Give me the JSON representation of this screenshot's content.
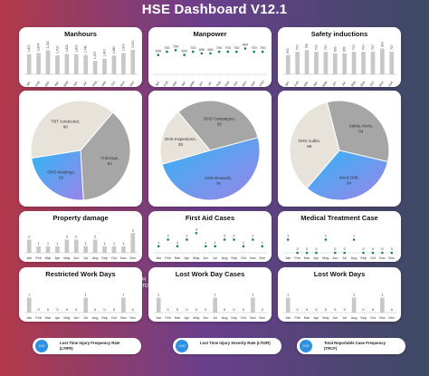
{
  "dashboard": {
    "title": "HSE Dashboard V12.1"
  },
  "months": [
    "Jan",
    "Feb",
    "Mar",
    "Apr",
    "May",
    "Jun",
    "Jul",
    "Aug",
    "Sep",
    "Oct",
    "Nov",
    "Dec"
  ],
  "colors": {
    "bar": "#c8c8c8",
    "dot": "#1b7a6a",
    "axis": "#7aa0c8",
    "pie_grey": "#a6a6a6",
    "pie_light": "#e7e3da",
    "pie_blue1": "#2fb6f5",
    "pie_blue2": "#9c84e8"
  },
  "kpis": [
    {
      "dot_text": "0.00",
      "label": "Lost Time Injury Frequency Rate (LTIFR)"
    },
    {
      "dot_text": "0.00",
      "label": "Lost Time Injury Severity Rate (LTISR)"
    },
    {
      "dot_text": "0.00",
      "label": "Total Reportable Case Frequency (TRCF)"
    }
  ],
  "edge_text": [
    "FI",
    "TD"
  ],
  "chart_data": [
    {
      "id": "manhours",
      "type": "bar",
      "title": "Manhours",
      "categories": [
        "Jan",
        "Feb",
        "Mar",
        "Apr",
        "May",
        "Jun",
        "Jul",
        "Aug",
        "Sep",
        "Oct",
        "Nov",
        "Dec"
      ],
      "values": [
        1800,
        1904,
        2150,
        1700,
        1820,
        1800,
        1740,
        1200,
        1400,
        1680,
        1900,
        2200
      ],
      "labels": [
        "1,800",
        "1,904",
        "2,150",
        "1,700",
        "1,820",
        "1,800",
        "1,740",
        "1,200",
        "1,400",
        "1,680",
        "1,900",
        "2,200"
      ],
      "ylim": [
        0,
        2600
      ]
    },
    {
      "id": "manpower",
      "type": "line",
      "title": "Manpower",
      "categories": [
        "Jan",
        "Feb",
        "Mar",
        "Apr",
        "May",
        "Jun",
        "Jul",
        "Aug",
        "Sep",
        "Oct",
        "Nov",
        "Dec",
        "YTD"
      ],
      "values": [
        600,
        700,
        750,
        600,
        700,
        650,
        650,
        700,
        700,
        700,
        800,
        700,
        700
      ],
      "labels": [
        "600",
        "700",
        "750",
        "600",
        "700",
        "650",
        "650",
        "700",
        "700",
        "700",
        "800",
        "700",
        "700"
      ],
      "ylim": [
        0,
        900
      ]
    },
    {
      "id": "safety_inductions",
      "type": "bar",
      "title": "Safety inductions",
      "categories": [
        "Jan",
        "Feb",
        "Mar",
        "Apr",
        "May",
        "Jun",
        "Jul",
        "Aug",
        "Sep",
        "Oct",
        "Nov",
        "Dec"
      ],
      "values": [
        600,
        700,
        750,
        700,
        700,
        650,
        650,
        700,
        700,
        700,
        800,
        700
      ],
      "labels": [
        "600",
        "700",
        "750",
        "700",
        "700",
        "650",
        "650",
        "700",
        "700",
        "700",
        "800",
        "700"
      ],
      "ylim": [
        0,
        900
      ]
    },
    {
      "id": "pie1",
      "type": "pie",
      "slices": [
        {
          "label": "TBT conducted, 86",
          "value": 86
        },
        {
          "label": "Trainings, 84",
          "value": 84
        },
        {
          "label": "OHS Meetings, 52",
          "value": 52
        }
      ]
    },
    {
      "id": "pie2",
      "type": "pie",
      "slices": [
        {
          "label": "OHS Campaigns, 50",
          "value": 50
        },
        {
          "label": "OHS Rewards, 78",
          "value": 78
        },
        {
          "label": "OHS Inspections, 29",
          "value": 29
        }
      ]
    },
    {
      "id": "pie3",
      "type": "pie",
      "slices": [
        {
          "label": "Safety Alerts, 64",
          "value": 64
        },
        {
          "label": "Mock Drill, 64",
          "value": 64
        },
        {
          "label": "OHS Audits, 68",
          "value": 68
        }
      ]
    },
    {
      "id": "property_damage",
      "type": "bar",
      "title": "Property damage",
      "categories": [
        "Jan",
        "Feb",
        "Mar",
        "Apr",
        "May",
        "Jun",
        "Jul",
        "Aug",
        "Sep",
        "Oct",
        "Nov",
        "Dec"
      ],
      "values": [
        2,
        1,
        1,
        1,
        2,
        2,
        1,
        2,
        1,
        1,
        1,
        3
      ],
      "labels": [
        "2",
        "1",
        "1",
        "1",
        "2",
        "2",
        "1",
        "2",
        "1",
        "1",
        "1",
        "3"
      ],
      "ylim": [
        0,
        4
      ]
    },
    {
      "id": "first_aid",
      "type": "line",
      "title": "First Aid Cases",
      "categories": [
        "Jan",
        "Feb",
        "Mar",
        "Apr",
        "May",
        "Jun",
        "Jul",
        "Aug",
        "Sep",
        "Oct",
        "Nov",
        "Dec"
      ],
      "values": [
        1,
        2,
        1,
        2,
        3,
        1,
        1,
        2,
        2,
        1,
        2,
        1
      ],
      "labels": [
        "1",
        "2",
        "1",
        "2",
        "3",
        "1",
        "1",
        "2",
        "2",
        "1",
        "2",
        "1"
      ],
      "ylim": [
        0,
        4
      ]
    },
    {
      "id": "medical_treatment",
      "type": "line",
      "title": "Medical Treatment Case",
      "categories": [
        "Jan",
        "Feb",
        "Mar",
        "Apr",
        "May",
        "Jun",
        "Jul",
        "Aug",
        "Sep",
        "Oct",
        "Nov",
        "Dec"
      ],
      "values": [
        1,
        0,
        0,
        0,
        1,
        0,
        0,
        1,
        0,
        0,
        0,
        0
      ],
      "labels": [
        "1",
        "0",
        "0",
        "0",
        "1",
        "0",
        "0",
        "1",
        "0",
        "0",
        "0",
        "0"
      ],
      "ylim": [
        0,
        2
      ]
    },
    {
      "id": "restricted_work_days",
      "type": "bar",
      "title": "Restricted Work Days",
      "categories": [
        "Jan",
        "Feb",
        "Mar",
        "Apr",
        "May",
        "Jun",
        "Jul",
        "Aug",
        "Sep",
        "Oct",
        "Nov",
        "Dec"
      ],
      "values": [
        1,
        0,
        0,
        0,
        0,
        0,
        1,
        0,
        0,
        0,
        1,
        0
      ],
      "labels": [
        "1",
        "0",
        "0",
        "0",
        "0",
        "0",
        "1",
        "0",
        "0",
        "0",
        "1",
        "0"
      ],
      "ylim": [
        0,
        2
      ]
    },
    {
      "id": "lost_work_day_cases",
      "type": "bar",
      "title": "Lost Work Day Cases",
      "categories": [
        "Jan",
        "Feb",
        "Mar",
        "Apr",
        "May",
        "Jun",
        "Jul",
        "Aug",
        "Sep",
        "Oct",
        "Nov",
        "Dec"
      ],
      "values": [
        1,
        0,
        0,
        0,
        0,
        0,
        1,
        0,
        0,
        0,
        1,
        0
      ],
      "labels": [
        "1",
        "0",
        "0",
        "0",
        "0",
        "0",
        "1",
        "0",
        "0",
        "0",
        "1",
        "0"
      ],
      "ylim": [
        0,
        2
      ]
    },
    {
      "id": "lost_work_days",
      "type": "bar",
      "title": "Lost Work Days",
      "categories": [
        "Jan",
        "Feb",
        "Mar",
        "Apr",
        "May",
        "Jun",
        "Jul",
        "Aug",
        "Sep",
        "Oct",
        "Nov",
        "Dec"
      ],
      "values": [
        1,
        0,
        0,
        0,
        0,
        0,
        0,
        1,
        0,
        0,
        1,
        0
      ],
      "labels": [
        "1",
        "0",
        "0",
        "0",
        "0",
        "0",
        "0",
        "1",
        "0",
        "0",
        "1",
        "0"
      ],
      "ylim": [
        0,
        2
      ]
    }
  ]
}
